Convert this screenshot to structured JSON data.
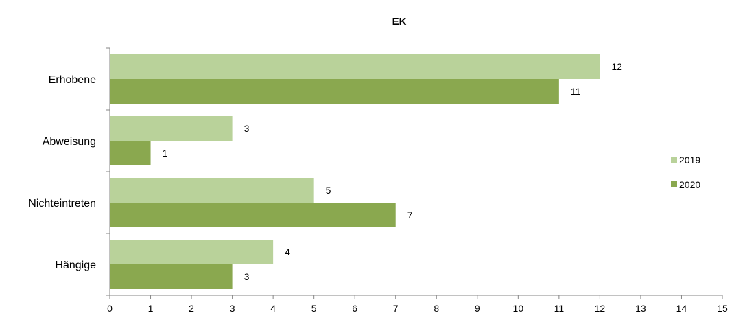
{
  "chart_data": {
    "type": "bar",
    "orientation": "horizontal",
    "title": "EK",
    "xlabel": "",
    "ylabel": "",
    "categories": [
      "Erhobene",
      "Abweisung",
      "Nichteintreten",
      "Hängige"
    ],
    "series": [
      {
        "name": "2019",
        "values": [
          12,
          3,
          5,
          4
        ],
        "color": "#b9d29a"
      },
      {
        "name": "2020",
        "values": [
          11,
          1,
          7,
          3
        ],
        "color": "#8aa84f"
      }
    ],
    "xlim": [
      0,
      15
    ],
    "x_ticks": [
      0,
      1,
      2,
      3,
      4,
      5,
      6,
      7,
      8,
      9,
      10,
      11,
      12,
      13,
      14,
      15
    ],
    "grid": false,
    "legend_position": "right",
    "data_labels": true
  }
}
